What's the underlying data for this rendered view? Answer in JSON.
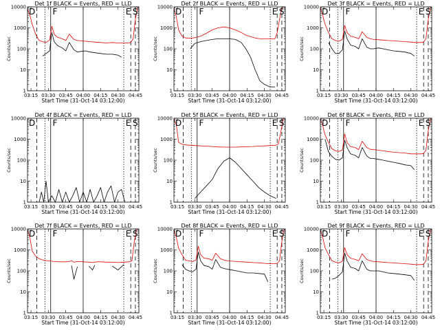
{
  "colors": {
    "events": "#000000",
    "lld": "#e00000",
    "background": "#ffffff"
  },
  "common": {
    "xlabel": "Start Time (31-Oct-14 03:12:00)",
    "ylabel": "Counts/sec",
    "xticks": [
      "03:15",
      "03:30",
      "03:45",
      "04:00",
      "04:15",
      "04:30",
      "04:45"
    ],
    "yticks": [
      "1",
      "10",
      "100",
      "1000",
      "10000"
    ],
    "ylim": [
      1,
      10000
    ],
    "yscale": "log",
    "xlim": [
      "03:12",
      "04:48"
    ],
    "markers": [
      "D",
      "F",
      "E",
      "S"
    ],
    "vertical_lines": [
      {
        "time": "03:20",
        "style": "dashed"
      },
      {
        "time": "03:27",
        "style": "dotted"
      },
      {
        "time": "03:32",
        "style": "solid"
      },
      {
        "time": "04:00",
        "style": "solid"
      },
      {
        "time": "04:35",
        "style": "dotted"
      },
      {
        "time": "04:41",
        "style": "dashed"
      },
      {
        "time": "04:45",
        "style": "dashed"
      }
    ]
  },
  "chart_data": [
    {
      "type": "line",
      "title": "Det 1f BLACK = Events, RED = LLD",
      "x": [
        "03:12",
        "03:14",
        "03:16",
        "03:19",
        "03:22",
        "03:25",
        "03:28",
        "03:31",
        "03:33",
        "03:35",
        "03:38",
        "03:42",
        "03:45",
        "03:48",
        "03:52",
        "03:55",
        "03:58",
        "04:02",
        "04:06",
        "04:10",
        "04:15",
        "04:20",
        "04:25",
        "04:30",
        "04:33",
        "04:36",
        "04:39",
        "04:41",
        "04:43",
        "04:45",
        "04:47"
      ],
      "series": [
        {
          "name": "Events",
          "color": "#000000",
          "values": [
            null,
            null,
            null,
            null,
            null,
            45,
            60,
            80,
            600,
            220,
            140,
            110,
            80,
            200,
            90,
            70,
            75,
            80,
            70,
            65,
            60,
            55,
            55,
            50,
            40,
            null,
            null,
            null,
            null,
            null,
            null
          ]
        },
        {
          "name": "LLD",
          "color": "#e00000",
          "values": [
            8000,
            4000,
            1500,
            500,
            250,
            220,
            200,
            260,
            1200,
            500,
            350,
            300,
            250,
            500,
            280,
            250,
            240,
            230,
            220,
            210,
            200,
            190,
            200,
            190,
            190,
            190,
            190,
            200,
            300,
            2500,
            10000
          ]
        }
      ]
    },
    {
      "type": "line",
      "title": "Det 2f BLACK = Events, RED = LLD",
      "x": [
        "03:12",
        "03:14",
        "03:16",
        "03:19",
        "03:22",
        "03:26",
        "03:30",
        "03:35",
        "03:40",
        "03:45",
        "03:50",
        "03:55",
        "04:00",
        "04:05",
        "04:10",
        "04:14",
        "04:18",
        "04:22",
        "04:26",
        "04:30",
        "04:35",
        "04:39",
        "04:41",
        "04:43",
        "04:45",
        "04:47"
      ],
      "series": [
        {
          "name": "Events",
          "color": "#000000",
          "values": [
            null,
            null,
            null,
            null,
            null,
            100,
            180,
            220,
            250,
            280,
            300,
            300,
            300,
            280,
            200,
            100,
            40,
            10,
            3,
            2,
            1.5,
            1.5,
            null,
            null,
            null,
            null
          ]
        },
        {
          "name": "LLD",
          "color": "#e00000",
          "values": [
            8000,
            3500,
            800,
            400,
            330,
            320,
            340,
            400,
            550,
            800,
            1000,
            1100,
            1000,
            800,
            600,
            450,
            380,
            330,
            300,
            300,
            300,
            300,
            600,
            2500,
            9000,
            10000
          ]
        }
      ]
    },
    {
      "type": "line",
      "title": "Det 3f BLACK = Events, RED = LLD",
      "x": [
        "03:12",
        "03:14",
        "03:16",
        "03:19",
        "03:22",
        "03:25",
        "03:28",
        "03:31",
        "03:33",
        "03:35",
        "03:38",
        "03:42",
        "03:45",
        "03:48",
        "03:52",
        "03:55",
        "03:58",
        "04:02",
        "04:06",
        "04:10",
        "04:15",
        "04:20",
        "04:25",
        "04:30",
        "04:33",
        "04:36",
        "04:39",
        "04:41",
        "04:43",
        "04:45",
        "04:47"
      ],
      "series": [
        {
          "name": "Events",
          "color": "#000000",
          "values": [
            null,
            null,
            null,
            200,
            100,
            60,
            60,
            90,
            700,
            300,
            150,
            130,
            100,
            300,
            120,
            100,
            100,
            110,
            100,
            90,
            80,
            75,
            70,
            60,
            45,
            null,
            null,
            null,
            null,
            null,
            null
          ]
        },
        {
          "name": "LLD",
          "color": "#e00000",
          "values": [
            9000,
            4000,
            1500,
            600,
            300,
            250,
            230,
            280,
            1300,
            600,
            400,
            350,
            300,
            650,
            350,
            300,
            280,
            270,
            260,
            250,
            240,
            230,
            220,
            210,
            200,
            200,
            200,
            210,
            300,
            2500,
            10000
          ]
        }
      ]
    },
    {
      "type": "line",
      "title": "Det 4f BLACK = Events, RED = LLD",
      "x": [
        "03:22",
        "03:24",
        "03:26",
        "03:28",
        "03:30",
        "03:33",
        "03:36",
        "03:39",
        "03:42",
        "03:45",
        "03:48",
        "03:51",
        "03:54",
        "03:57",
        "04:00",
        "04:03",
        "04:06",
        "04:09",
        "04:12",
        "04:15",
        "04:18",
        "04:21",
        "04:24",
        "04:27",
        "04:30",
        "04:33",
        "04:36"
      ],
      "series": [
        {
          "name": "Events",
          "color": "#000000",
          "values": [
            1,
            3,
            1,
            10,
            1,
            2,
            1,
            4,
            1,
            3,
            1,
            2,
            5,
            1,
            3,
            1,
            4,
            1,
            2,
            5,
            1,
            3,
            6,
            1,
            3,
            4,
            1
          ]
        },
        {
          "name": "LLD",
          "color": "#e00000",
          "values": [
            null,
            null,
            null,
            null,
            null,
            null,
            null,
            null,
            null,
            null,
            null,
            null,
            null,
            null,
            null,
            null,
            null,
            null,
            null,
            null,
            null,
            null,
            null,
            null,
            null,
            null,
            null
          ]
        }
      ]
    },
    {
      "type": "line",
      "title": "Det 5f BLACK = Events, RED = LLD",
      "x": [
        "03:12",
        "03:14",
        "03:16",
        "03:20",
        "03:25",
        "03:30",
        "03:35",
        "03:40",
        "03:45",
        "03:50",
        "03:55",
        "04:00",
        "04:05",
        "04:10",
        "04:15",
        "04:20",
        "04:25",
        "04:30",
        "04:35",
        "04:40",
        "04:42",
        "04:44",
        "04:46",
        "04:47"
      ],
      "series": [
        {
          "name": "Events",
          "color": "#000000",
          "values": [
            null,
            null,
            null,
            null,
            null,
            1.5,
            3,
            6,
            12,
            40,
            90,
            130,
            80,
            40,
            20,
            10,
            5,
            3,
            2,
            1.5,
            null,
            null,
            null,
            null
          ]
        },
        {
          "name": "LLD",
          "color": "#e00000",
          "values": [
            9000,
            5000,
            700,
            550,
            520,
            500,
            480,
            470,
            450,
            430,
            420,
            420,
            420,
            430,
            440,
            450,
            470,
            480,
            500,
            520,
            600,
            2000,
            9000,
            10000
          ]
        }
      ]
    },
    {
      "type": "line",
      "title": "Det 6f BLACK = Events, RED = LLD",
      "x": [
        "03:12",
        "03:14",
        "03:16",
        "03:19",
        "03:22",
        "03:25",
        "03:28",
        "03:31",
        "03:33",
        "03:35",
        "03:38",
        "03:42",
        "03:45",
        "03:48",
        "03:52",
        "03:55",
        "03:58",
        "04:02",
        "04:06",
        "04:10",
        "04:15",
        "04:20",
        "04:25",
        "04:30",
        "04:33",
        "04:36",
        "04:39",
        "04:41",
        "04:43",
        "04:45",
        "04:47"
      ],
      "series": [
        {
          "name": "Events",
          "color": "#000000",
          "values": [
            null,
            null,
            1000,
            250,
            150,
            110,
            100,
            130,
            900,
            400,
            200,
            170,
            130,
            400,
            160,
            120,
            120,
            110,
            100,
            90,
            80,
            70,
            60,
            55,
            35,
            null,
            null,
            null,
            null,
            null,
            null
          ]
        },
        {
          "name": "LLD",
          "color": "#e00000",
          "values": [
            9000,
            4500,
            1600,
            700,
            350,
            280,
            260,
            300,
            1800,
            700,
            450,
            400,
            320,
            800,
            400,
            330,
            320,
            300,
            280,
            260,
            240,
            230,
            220,
            200,
            200,
            200,
            200,
            210,
            300,
            2500,
            10000
          ]
        }
      ]
    },
    {
      "type": "line",
      "title": "Det 7f BLACK = Events, RED = LLD",
      "x": [
        "03:12",
        "03:14",
        "03:16",
        "03:19",
        "03:22",
        "03:26",
        "03:30",
        "03:35",
        "03:40",
        "03:45",
        "03:48",
        "03:50",
        "03:52",
        "03:55",
        "04:00",
        "04:05",
        "04:08",
        "04:10",
        "04:12",
        "04:15",
        "04:20",
        "04:25",
        "04:30",
        "04:35",
        "04:40",
        "04:42",
        "04:44",
        "04:46",
        "04:47"
      ],
      "series": [
        {
          "name": "Events",
          "color": "#000000",
          "values": [
            null,
            null,
            null,
            null,
            null,
            null,
            null,
            null,
            null,
            null,
            null,
            180,
            40,
            160,
            null,
            170,
            110,
            190,
            null,
            null,
            null,
            170,
            110,
            200,
            null,
            null,
            null,
            null,
            null
          ]
        },
        {
          "name": "LLD",
          "color": "#e00000",
          "values": [
            9000,
            4000,
            900,
            500,
            380,
            320,
            300,
            280,
            270,
            270,
            280,
            300,
            260,
            280,
            270,
            260,
            250,
            260,
            270,
            270,
            260,
            260,
            250,
            260,
            270,
            300,
            2500,
            9000,
            10000
          ]
        }
      ]
    },
    {
      "type": "line",
      "title": "Det 8f BLACK = Events, RED = LLD",
      "x": [
        "03:12",
        "03:14",
        "03:16",
        "03:19",
        "03:22",
        "03:25",
        "03:28",
        "03:31",
        "03:33",
        "03:35",
        "03:38",
        "03:42",
        "03:45",
        "03:48",
        "03:52",
        "03:55",
        "03:58",
        "04:02",
        "04:06",
        "04:10",
        "04:15",
        "04:20",
        "04:25",
        "04:30",
        "04:33",
        "04:36",
        "04:39",
        "04:41",
        "04:43",
        "04:45",
        "04:47"
      ],
      "series": [
        {
          "name": "Events",
          "color": "#000000",
          "values": [
            null,
            null,
            null,
            200,
            120,
            100,
            90,
            120,
            800,
            300,
            180,
            160,
            120,
            350,
            150,
            130,
            120,
            110,
            100,
            90,
            80,
            80,
            75,
            70,
            30,
            null,
            null,
            null,
            null,
            null,
            null
          ]
        },
        {
          "name": "LLD",
          "color": "#e00000",
          "values": [
            9000,
            4000,
            1200,
            600,
            320,
            300,
            280,
            330,
            1500,
            600,
            400,
            380,
            320,
            700,
            380,
            330,
            300,
            290,
            280,
            270,
            260,
            250,
            240,
            230,
            220,
            220,
            220,
            230,
            300,
            2500,
            10000
          ]
        }
      ]
    },
    {
      "type": "line",
      "title": "Det 9f BLACK = Events, RED = LLD",
      "x": [
        "03:12",
        "03:14",
        "03:16",
        "03:19",
        "03:22",
        "03:25",
        "03:28",
        "03:31",
        "03:33",
        "03:35",
        "03:38",
        "03:42",
        "03:45",
        "03:48",
        "03:52",
        "03:55",
        "03:58",
        "04:02",
        "04:06",
        "04:10",
        "04:15",
        "04:20",
        "04:25",
        "04:30",
        "04:33",
        "04:36",
        "04:39",
        "04:41",
        "04:43",
        "04:45",
        "04:47"
      ],
      "series": [
        {
          "name": "Events",
          "color": "#000000",
          "values": [
            null,
            null,
            null,
            null,
            40,
            45,
            60,
            90,
            700,
            300,
            150,
            130,
            100,
            300,
            120,
            100,
            100,
            100,
            90,
            80,
            75,
            70,
            65,
            60,
            35,
            null,
            null,
            null,
            null,
            null,
            null
          ]
        },
        {
          "name": "LLD",
          "color": "#e00000",
          "values": [
            9000,
            4000,
            1300,
            600,
            300,
            260,
            240,
            290,
            1300,
            600,
            400,
            350,
            300,
            650,
            350,
            300,
            280,
            270,
            260,
            250,
            240,
            230,
            220,
            210,
            200,
            200,
            200,
            210,
            300,
            2500,
            10000
          ]
        }
      ]
    }
  ]
}
